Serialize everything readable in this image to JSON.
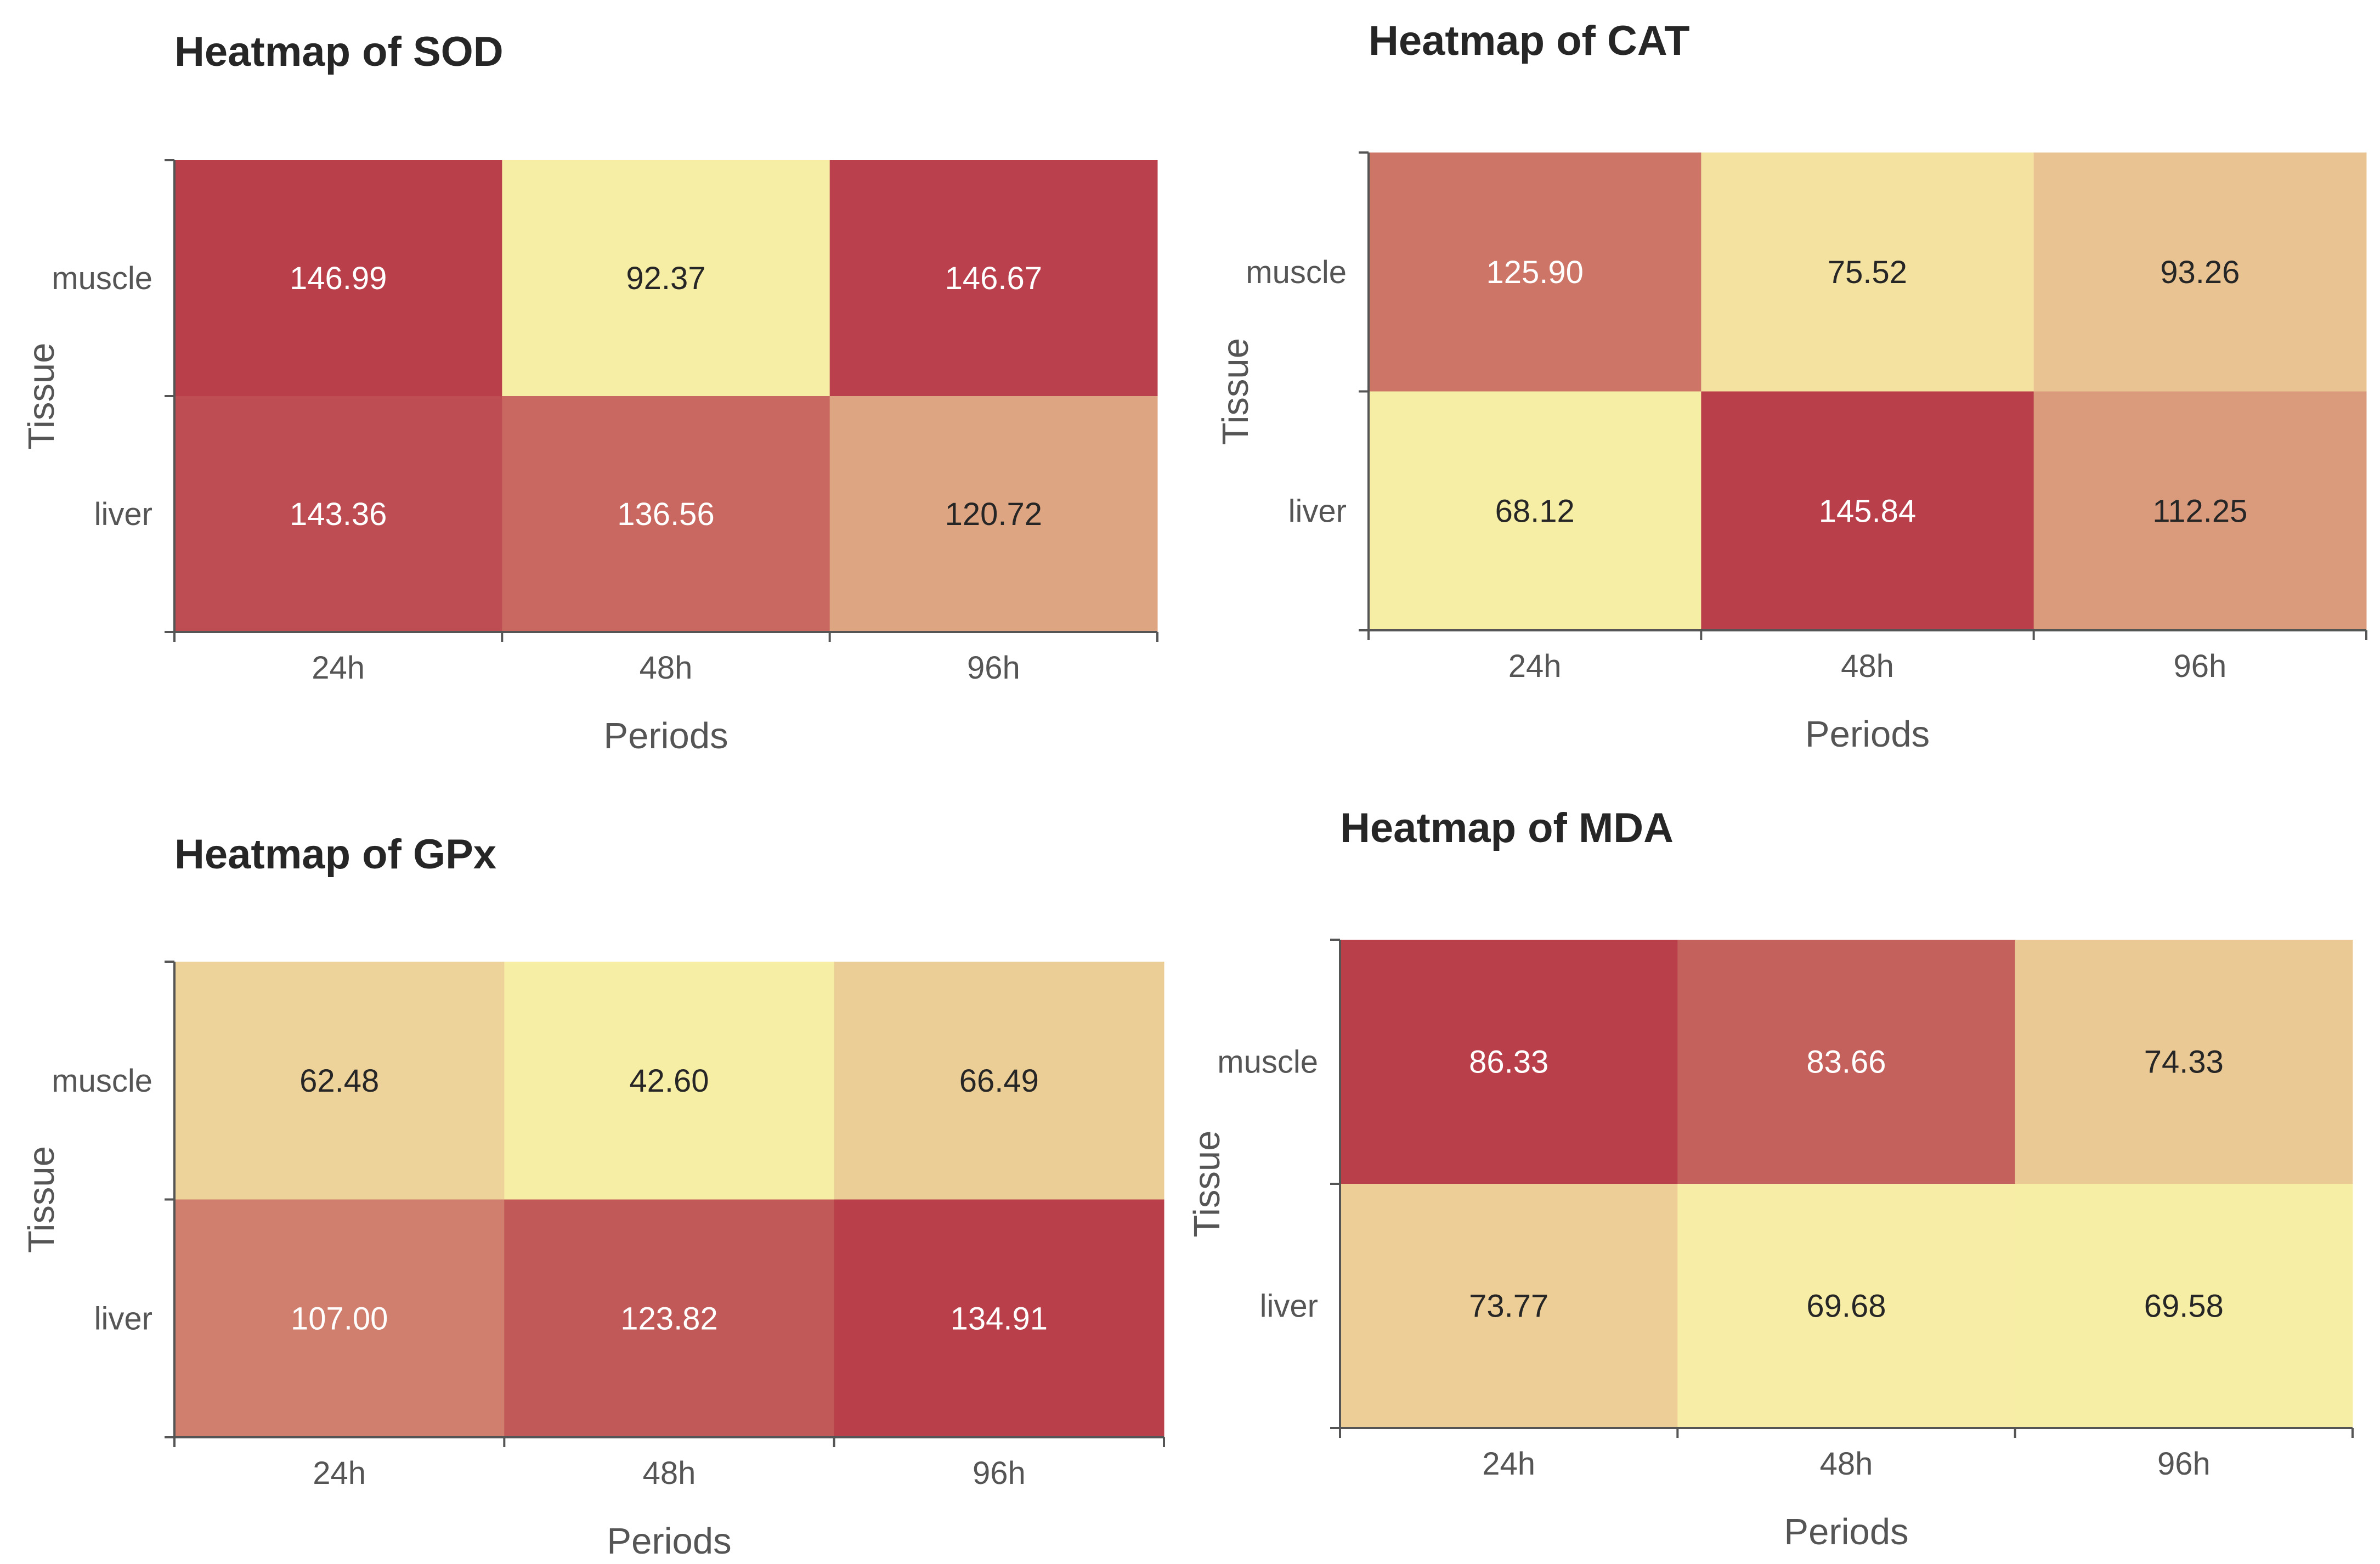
{
  "chart_data": [
    {
      "type": "heatmap",
      "title": "Heatmap of SOD",
      "xlabel": "Periods",
      "ylabel": "Tissue",
      "x_categories": [
        "24h",
        "48h",
        "96h"
      ],
      "y_categories": [
        "muscle",
        "liver"
      ],
      "values": [
        [
          146.99,
          92.37,
          146.67
        ],
        [
          143.36,
          136.56,
          120.72
        ]
      ],
      "value_labels": [
        [
          "146.99",
          "92.37",
          "146.67"
        ],
        [
          "143.36",
          "136.56",
          "120.72"
        ]
      ]
    },
    {
      "type": "heatmap",
      "title": "Heatmap of CAT",
      "xlabel": "Periods",
      "ylabel": "Tissue",
      "x_categories": [
        "24h",
        "48h",
        "96h"
      ],
      "y_categories": [
        "muscle",
        "liver"
      ],
      "values": [
        [
          125.9,
          75.52,
          93.26
        ],
        [
          68.12,
          145.84,
          112.25
        ]
      ],
      "value_labels": [
        [
          "125.90",
          "75.52",
          "93.26"
        ],
        [
          "68.12",
          "145.84",
          "112.25"
        ]
      ]
    },
    {
      "type": "heatmap",
      "title": "Heatmap of GPx",
      "xlabel": "Periods",
      "ylabel": "Tissue",
      "x_categories": [
        "24h",
        "48h",
        "96h"
      ],
      "y_categories": [
        "muscle",
        "liver"
      ],
      "values": [
        [
          62.48,
          42.6,
          66.49
        ],
        [
          107.0,
          123.82,
          134.91
        ]
      ],
      "value_labels": [
        [
          "62.48",
          "42.60",
          "66.49"
        ],
        [
          "107.00",
          "123.82",
          "134.91"
        ]
      ]
    },
    {
      "type": "heatmap",
      "title": "Heatmap of MDA",
      "xlabel": "Periods",
      "ylabel": "Tissue",
      "x_categories": [
        "24h",
        "48h",
        "96h"
      ],
      "y_categories": [
        "muscle",
        "liver"
      ],
      "values": [
        [
          86.33,
          83.66,
          74.33
        ],
        [
          73.77,
          69.68,
          69.58
        ]
      ],
      "value_labels": [
        [
          "86.33",
          "83.66",
          "74.33"
        ],
        [
          "73.77",
          "69.68",
          "69.58"
        ]
      ]
    }
  ],
  "colors": {
    "low": "#f7eea6",
    "mid": "#e3b48a",
    "high": "#b93f4b",
    "text_dark": "#262626",
    "text_light": "#ffffff",
    "axis": "#555555"
  }
}
